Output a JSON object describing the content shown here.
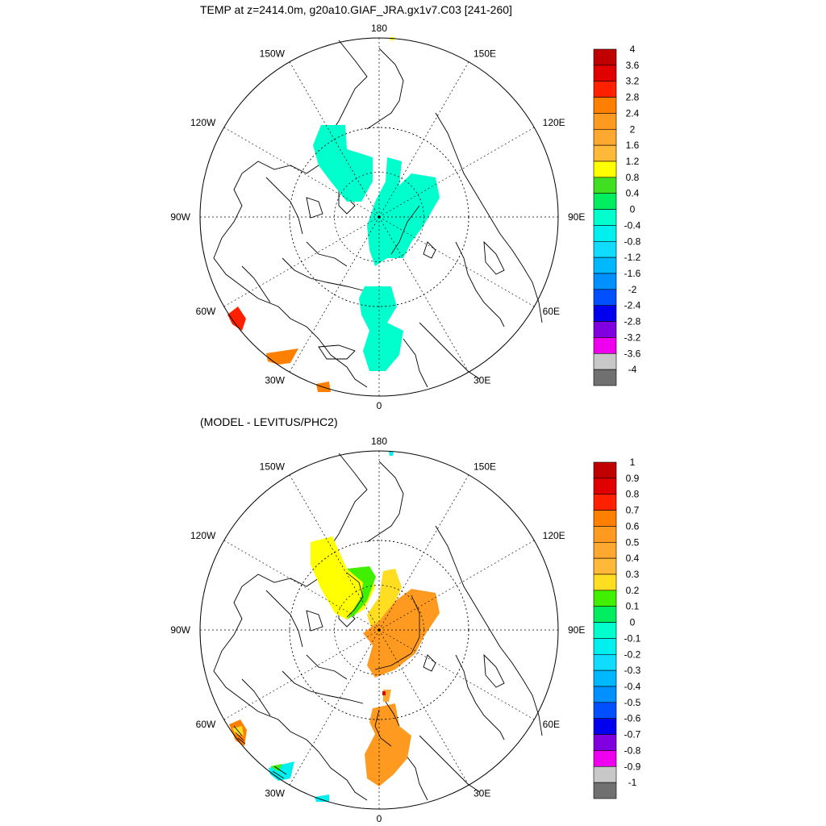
{
  "chart_data": [
    {
      "type": "heatmap",
      "projection": "polar-stereographic-north",
      "title": "TEMP at z=2414.0m, g20a10.GIAF_JRA.gx1v7.C03 [241-260]",
      "lon_labels": [
        "180",
        "150E",
        "120E",
        "90E",
        "60E",
        "30E",
        "0",
        "30W",
        "60W",
        "90W",
        "120W",
        "150W"
      ],
      "colorbar": {
        "levels": [
          "4",
          "3.6",
          "3.2",
          "2.8",
          "2.4",
          "2",
          "1.6",
          "1.2",
          "0.8",
          "0.4",
          "0",
          "-0.4",
          "-0.8",
          "-1.2",
          "-1.6",
          "-2",
          "-2.4",
          "-2.8",
          "-3.2",
          "-3.6",
          "-4"
        ],
        "colors": [
          "#c00000",
          "#e00000",
          "#ff2000",
          "#ff8000",
          "#ff9a20",
          "#ffa830",
          "#ffb838",
          "#ffff00",
          "#40e020",
          "#00ee60",
          "#00ffcc",
          "#00f0f0",
          "#10dcff",
          "#00b8ff",
          "#0090ff",
          "#0050ff",
          "#0000ee",
          "#8000e0",
          "#ee00ee",
          "#c8c8c8",
          "#707070"
        ]
      }
    },
    {
      "type": "heatmap",
      "projection": "polar-stereographic-north",
      "title": "(MODEL - LEVITUS/PHC2)",
      "lon_labels": [
        "180",
        "150E",
        "120E",
        "90E",
        "60E",
        "30E",
        "0",
        "30W",
        "60W",
        "90W",
        "120W",
        "150W"
      ],
      "colorbar": {
        "levels": [
          "1",
          "0.9",
          "0.8",
          "0.7",
          "0.6",
          "0.5",
          "0.4",
          "0.3",
          "0.2",
          "0.1",
          "0",
          "-0.1",
          "-0.2",
          "-0.3",
          "-0.4",
          "-0.5",
          "-0.6",
          "-0.7",
          "-0.8",
          "-0.9",
          "-1"
        ],
        "colors": [
          "#c00000",
          "#e00000",
          "#ff2000",
          "#ff8000",
          "#ff9a20",
          "#ffa830",
          "#ffb838",
          "#ffdd20",
          "#40f000",
          "#00ee60",
          "#00ffcc",
          "#00f0f0",
          "#10dcff",
          "#00b8ff",
          "#0090ff",
          "#0050ff",
          "#0000ee",
          "#8000e0",
          "#ee00ee",
          "#c8c8c8",
          "#707070"
        ]
      }
    }
  ]
}
